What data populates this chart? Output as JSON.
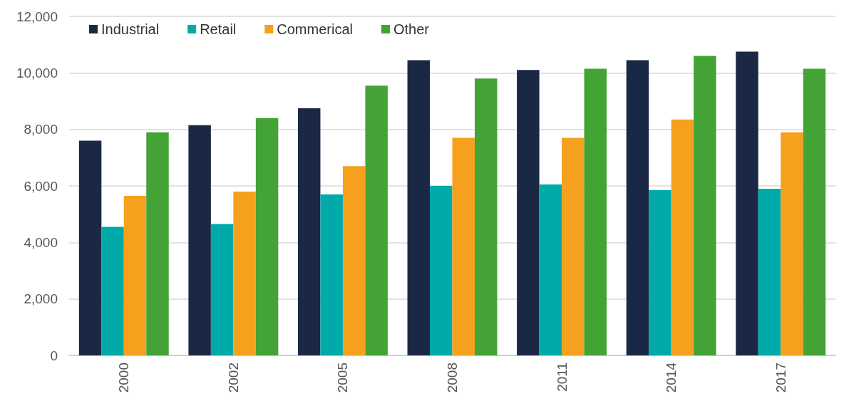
{
  "chart_data": {
    "type": "bar",
    "categories": [
      "2000",
      "2002",
      "2005",
      "2008",
      "2011",
      "2014",
      "2017"
    ],
    "series": [
      {
        "name": "Industrial",
        "color": "#1b2845",
        "values": [
          7600,
          8150,
          8750,
          10450,
          10100,
          10450,
          10750
        ]
      },
      {
        "name": "Retail",
        "color": "#00aaa9",
        "values": [
          4550,
          4650,
          5700,
          6000,
          6050,
          5850,
          5900
        ]
      },
      {
        "name": "Commerical",
        "color": "#f6a11e",
        "values": [
          5650,
          5800,
          6700,
          7700,
          7700,
          8350,
          7900
        ]
      },
      {
        "name": "Other",
        "color": "#43a335",
        "values": [
          7900,
          8400,
          9550,
          9800,
          10150,
          10600,
          10150
        ]
      }
    ],
    "ylim": [
      0,
      12000
    ],
    "yticks": [
      {
        "value": 0,
        "label": "0"
      },
      {
        "value": 2000,
        "label": "2,000"
      },
      {
        "value": 4000,
        "label": "4,000"
      },
      {
        "value": 6000,
        "label": "6,000"
      },
      {
        "value": 8000,
        "label": "8,000"
      },
      {
        "value": 10000,
        "label": "10,000"
      },
      {
        "value": 12000,
        "label": "12,000"
      }
    ],
    "grid": "y",
    "legend": "top left"
  }
}
